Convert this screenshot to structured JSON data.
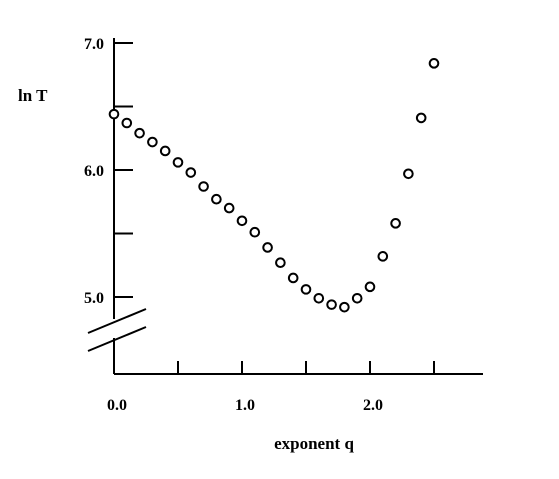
{
  "chart_data": {
    "type": "scatter",
    "xlabel": "exponent q",
    "ylabel": "ln T",
    "xlim": [
      0,
      2.85
    ],
    "ylim": [
      4.4,
      7.0
    ],
    "y_axis_break": "between 4.4 and 5.0",
    "x_ticks": [
      0.0,
      0.5,
      1.0,
      1.5,
      2.0,
      2.5
    ],
    "x_tick_labels": [
      "0.0",
      "1.0",
      "2.0"
    ],
    "x_tick_labels_at": [
      0.0,
      1.0,
      2.0
    ],
    "y_ticks": [
      5.0,
      5.5,
      6.0,
      6.5,
      7.0
    ],
    "y_tick_labels": [
      "5.0",
      "6.0",
      "7.0"
    ],
    "y_tick_labels_at": [
      5.0,
      6.0,
      7.0
    ],
    "marker": "open-circle",
    "grid": false,
    "series": [
      {
        "x": [
          0.0,
          0.1,
          0.2,
          0.3,
          0.4,
          0.5,
          0.6,
          0.7,
          0.8,
          0.9,
          1.0,
          1.1,
          1.2,
          1.3,
          1.4,
          1.5,
          1.6,
          1.7,
          1.8,
          1.9,
          2.0,
          2.1,
          2.2,
          2.3,
          2.4,
          2.5
        ],
        "y": [
          6.44,
          6.37,
          6.29,
          6.22,
          6.15,
          6.06,
          5.98,
          5.87,
          5.77,
          5.7,
          5.6,
          5.51,
          5.39,
          5.27,
          5.15,
          5.06,
          4.99,
          4.94,
          4.92,
          4.99,
          5.08,
          5.32,
          5.58,
          5.97,
          6.41,
          6.84
        ]
      }
    ]
  }
}
